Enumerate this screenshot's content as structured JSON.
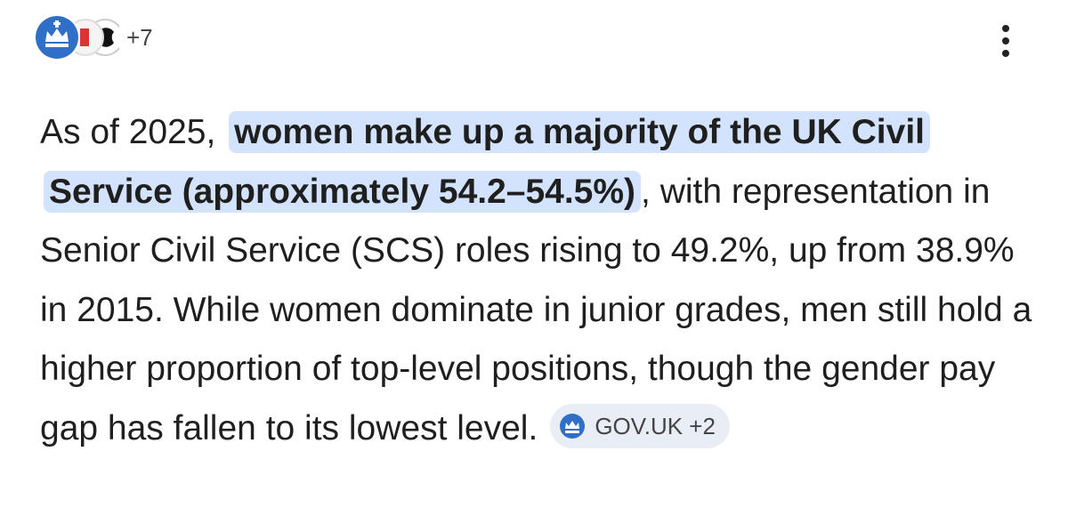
{
  "header": {
    "more_sources": "+7"
  },
  "answer": {
    "lead": "As of 2025,",
    "highlight": "women make up a majority of the UK Civil Service (approximately 54.2–54.5%)",
    "rest": ", with representation in Senior Civil Service (SCS) roles rising to 49.2%, up from 38.9% in 2015. While women dominate in junior grades, men still hold a higher proportion of top-level positions, though the gender pay gap has fallen to its lowest level."
  },
  "citation": {
    "label": "GOV.UK",
    "more": "+2"
  }
}
